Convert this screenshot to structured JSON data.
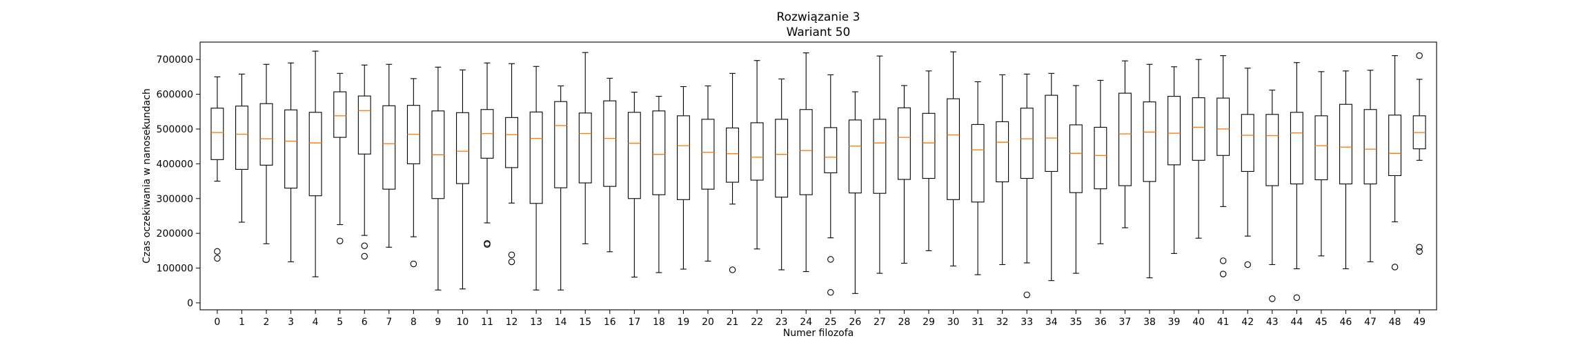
{
  "chart_data": {
    "type": "boxplot",
    "title_lines": [
      "Rozwiązanie 3",
      "Wariant 50"
    ],
    "xlabel": "Numer filozofa",
    "ylabel": "Czas oczekiwania w nanosekundach",
    "ylim": [
      -20000,
      750000
    ],
    "y_ticks": [
      0,
      100000,
      200000,
      300000,
      400000,
      500000,
      600000,
      700000
    ],
    "y_tick_labels": [
      "0",
      "100000",
      "200000",
      "300000",
      "400000",
      "500000",
      "600000",
      "700000"
    ],
    "grid": false,
    "colors": {
      "box": "#000000",
      "median": "#ff7f0e",
      "flier": "#000000"
    },
    "boxes": [
      {
        "label": "0",
        "whislo": 350000,
        "q1": 412000,
        "med": 490000,
        "q3": 560000,
        "whishi": 650000,
        "fliers": [
          148000,
          128000
        ]
      },
      {
        "label": "1",
        "whislo": 232000,
        "q1": 384000,
        "med": 485000,
        "q3": 566000,
        "whishi": 658000,
        "fliers": []
      },
      {
        "label": "2",
        "whislo": 170000,
        "q1": 396000,
        "med": 472000,
        "q3": 573000,
        "whishi": 686000,
        "fliers": []
      },
      {
        "label": "3",
        "whislo": 118000,
        "q1": 330000,
        "med": 465000,
        "q3": 555000,
        "whishi": 690000,
        "fliers": []
      },
      {
        "label": "4",
        "whislo": 75000,
        "q1": 308000,
        "med": 460000,
        "q3": 548000,
        "whishi": 724000,
        "fliers": []
      },
      {
        "label": "5",
        "whislo": 225000,
        "q1": 476000,
        "med": 538000,
        "q3": 607000,
        "whishi": 660000,
        "fliers": [
          178000
        ]
      },
      {
        "label": "6",
        "whislo": 194000,
        "q1": 428000,
        "med": 553000,
        "q3": 595000,
        "whishi": 684000,
        "fliers": [
          164000,
          134000
        ]
      },
      {
        "label": "7",
        "whislo": 160000,
        "q1": 327000,
        "med": 458000,
        "q3": 567000,
        "whishi": 686000,
        "fliers": []
      },
      {
        "label": "8",
        "whislo": 190000,
        "q1": 400000,
        "med": 485000,
        "q3": 568000,
        "whishi": 645000,
        "fliers": [
          112000
        ]
      },
      {
        "label": "9",
        "whislo": 37000,
        "q1": 300000,
        "med": 426000,
        "q3": 552000,
        "whishi": 678000,
        "fliers": []
      },
      {
        "label": "10",
        "whislo": 40000,
        "q1": 343000,
        "med": 436000,
        "q3": 547000,
        "whishi": 670000,
        "fliers": []
      },
      {
        "label": "11",
        "whislo": 230000,
        "q1": 416000,
        "med": 487000,
        "q3": 556000,
        "whishi": 690000,
        "fliers": [
          171000,
          168000
        ]
      },
      {
        "label": "12",
        "whislo": 287000,
        "q1": 389000,
        "med": 484000,
        "q3": 533000,
        "whishi": 688000,
        "fliers": [
          138000,
          118000
        ]
      },
      {
        "label": "13",
        "whislo": 37000,
        "q1": 286000,
        "med": 473000,
        "q3": 549000,
        "whishi": 680000,
        "fliers": []
      },
      {
        "label": "14",
        "whislo": 37000,
        "q1": 331000,
        "med": 510000,
        "q3": 579000,
        "whishi": 624000,
        "fliers": []
      },
      {
        "label": "15",
        "whislo": 170000,
        "q1": 345000,
        "med": 487000,
        "q3": 546000,
        "whishi": 720000,
        "fliers": []
      },
      {
        "label": "16",
        "whislo": 147000,
        "q1": 335000,
        "med": 473000,
        "q3": 581000,
        "whishi": 646000,
        "fliers": []
      },
      {
        "label": "17",
        "whislo": 74000,
        "q1": 300000,
        "med": 459000,
        "q3": 548000,
        "whishi": 606000,
        "fliers": []
      },
      {
        "label": "18",
        "whislo": 87000,
        "q1": 311000,
        "med": 427000,
        "q3": 552000,
        "whishi": 594000,
        "fliers": []
      },
      {
        "label": "19",
        "whislo": 97000,
        "q1": 297000,
        "med": 452000,
        "q3": 538000,
        "whishi": 622000,
        "fliers": []
      },
      {
        "label": "20",
        "whislo": 120000,
        "q1": 327000,
        "med": 433000,
        "q3": 528000,
        "whishi": 624000,
        "fliers": []
      },
      {
        "label": "21",
        "whislo": 284000,
        "q1": 347000,
        "med": 429000,
        "q3": 503000,
        "whishi": 660000,
        "fliers": [
          95000
        ]
      },
      {
        "label": "22",
        "whislo": 155000,
        "q1": 353000,
        "med": 419000,
        "q3": 518000,
        "whishi": 697000,
        "fliers": []
      },
      {
        "label": "23",
        "whislo": 95000,
        "q1": 304000,
        "med": 427000,
        "q3": 528000,
        "whishi": 644000,
        "fliers": []
      },
      {
        "label": "24",
        "whislo": 90000,
        "q1": 311000,
        "med": 438000,
        "q3": 556000,
        "whishi": 719000,
        "fliers": []
      },
      {
        "label": "25",
        "whislo": 187000,
        "q1": 374000,
        "med": 419000,
        "q3": 504000,
        "whishi": 656000,
        "fliers": [
          125000,
          30000
        ]
      },
      {
        "label": "26",
        "whislo": 27000,
        "q1": 316000,
        "med": 451000,
        "q3": 526000,
        "whishi": 607000,
        "fliers": []
      },
      {
        "label": "27",
        "whislo": 85000,
        "q1": 315000,
        "med": 460000,
        "q3": 528000,
        "whishi": 710000,
        "fliers": []
      },
      {
        "label": "28",
        "whislo": 114000,
        "q1": 355000,
        "med": 476000,
        "q3": 561000,
        "whishi": 625000,
        "fliers": []
      },
      {
        "label": "29",
        "whislo": 150000,
        "q1": 358000,
        "med": 460000,
        "q3": 545000,
        "whishi": 667000,
        "fliers": []
      },
      {
        "label": "30",
        "whislo": 106000,
        "q1": 297000,
        "med": 483000,
        "q3": 587000,
        "whishi": 722000,
        "fliers": []
      },
      {
        "label": "31",
        "whislo": 81000,
        "q1": 290000,
        "med": 440000,
        "q3": 513000,
        "whishi": 636000,
        "fliers": []
      },
      {
        "label": "32",
        "whislo": 110000,
        "q1": 348000,
        "med": 462000,
        "q3": 521000,
        "whishi": 656000,
        "fliers": []
      },
      {
        "label": "33",
        "whislo": 115000,
        "q1": 358000,
        "med": 472000,
        "q3": 560000,
        "whishi": 658000,
        "fliers": [
          23000
        ]
      },
      {
        "label": "34",
        "whislo": 64000,
        "q1": 378000,
        "med": 474000,
        "q3": 597000,
        "whishi": 660000,
        "fliers": []
      },
      {
        "label": "35",
        "whislo": 85000,
        "q1": 317000,
        "med": 430000,
        "q3": 512000,
        "whishi": 625000,
        "fliers": []
      },
      {
        "label": "36",
        "whislo": 170000,
        "q1": 328000,
        "med": 424000,
        "q3": 505000,
        "whishi": 640000,
        "fliers": []
      },
      {
        "label": "37",
        "whislo": 216000,
        "q1": 337000,
        "med": 486000,
        "q3": 603000,
        "whishi": 696000,
        "fliers": []
      },
      {
        "label": "38",
        "whislo": 72000,
        "q1": 349000,
        "med": 491000,
        "q3": 578000,
        "whishi": 686000,
        "fliers": []
      },
      {
        "label": "39",
        "whislo": 142000,
        "q1": 397000,
        "med": 488000,
        "q3": 594000,
        "whishi": 679000,
        "fliers": []
      },
      {
        "label": "40",
        "whislo": 186000,
        "q1": 410000,
        "med": 505000,
        "q3": 590000,
        "whishi": 700000,
        "fliers": []
      },
      {
        "label": "41",
        "whislo": 277000,
        "q1": 424000,
        "med": 500000,
        "q3": 589000,
        "whishi": 711000,
        "fliers": [
          121000,
          83000
        ]
      },
      {
        "label": "42",
        "whislo": 192000,
        "q1": 378000,
        "med": 482000,
        "q3": 542000,
        "whishi": 675000,
        "fliers": [
          110000
        ]
      },
      {
        "label": "43",
        "whislo": 110000,
        "q1": 337000,
        "med": 481000,
        "q3": 542000,
        "whishi": 612000,
        "fliers": [
          12000
        ]
      },
      {
        "label": "44",
        "whislo": 98000,
        "q1": 342000,
        "med": 489000,
        "q3": 548000,
        "whishi": 691000,
        "fliers": [
          15000
        ]
      },
      {
        "label": "45",
        "whislo": 135000,
        "q1": 354000,
        "med": 452000,
        "q3": 538000,
        "whishi": 665000,
        "fliers": []
      },
      {
        "label": "46",
        "whislo": 98000,
        "q1": 342000,
        "med": 448000,
        "q3": 571000,
        "whishi": 667000,
        "fliers": []
      },
      {
        "label": "47",
        "whislo": 118000,
        "q1": 342000,
        "med": 442000,
        "q3": 556000,
        "whishi": 669000,
        "fliers": []
      },
      {
        "label": "48",
        "whislo": 233000,
        "q1": 366000,
        "med": 430000,
        "q3": 540000,
        "whishi": 711000,
        "fliers": [
          103000
        ]
      },
      {
        "label": "49",
        "whislo": 410000,
        "q1": 443000,
        "med": 490000,
        "q3": 538000,
        "whishi": 643000,
        "fliers": [
          711000,
          160000,
          148000
        ]
      }
    ]
  }
}
